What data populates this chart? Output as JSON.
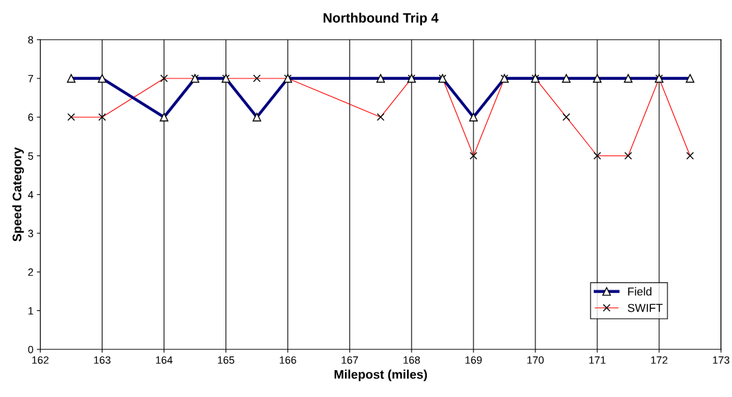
{
  "chart_data": {
    "type": "line",
    "title": "Northbound Trip 4",
    "xlabel": "Milepost (miles)",
    "ylabel": "Speed Category",
    "xlim": [
      162,
      173
    ],
    "xticks": [
      162,
      163,
      164,
      165,
      166,
      167,
      168,
      169,
      170,
      171,
      172,
      173
    ],
    "ylim": [
      0,
      8
    ],
    "yticks": [
      0,
      1,
      2,
      3,
      4,
      5,
      6,
      7,
      8
    ],
    "grid": "x",
    "legend": "bottom right",
    "x": [
      162.5,
      163,
      164,
      164.5,
      165,
      165.5,
      166,
      167.5,
      168,
      168.5,
      169,
      169.5,
      170,
      170.5,
      171,
      171.5,
      172,
      172.5
    ],
    "series": [
      {
        "name": "Field",
        "color": "#000080",
        "marker": "triangle",
        "values": [
          7,
          7,
          6,
          7,
          7,
          6,
          7,
          7,
          7,
          7,
          6,
          7,
          7,
          7,
          7,
          7,
          7,
          7
        ]
      },
      {
        "name": "SWIFT",
        "color": "#ff0000",
        "marker": "cross",
        "values": [
          6,
          6,
          7,
          7,
          7,
          7,
          7,
          6,
          7,
          7,
          5,
          7,
          7,
          6,
          5,
          5,
          7,
          5
        ]
      }
    ]
  }
}
